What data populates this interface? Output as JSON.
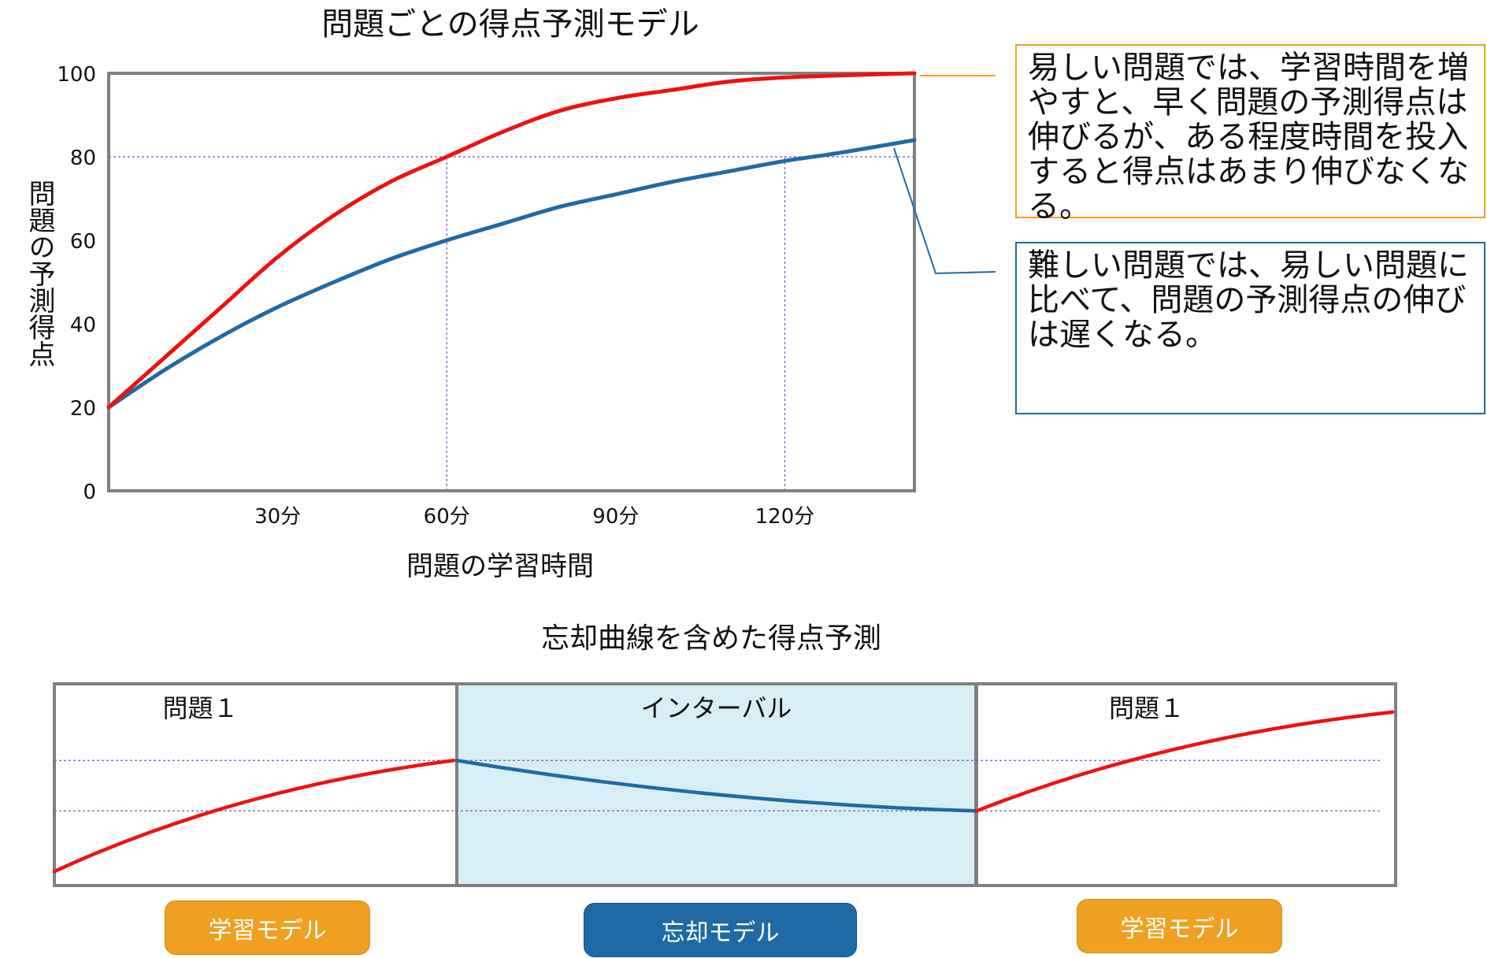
{
  "colors": {
    "easy": "#ee1111",
    "hard": "#1f6aa5",
    "frame": "#808080",
    "guide": "#7a55b8",
    "callout_easy_border": "#f0a020",
    "callout_hard_border": "#1f6aa5",
    "interval_fill": "#d7eef4",
    "pill_learning": "#f0a020",
    "pill_forgetting": "#1f6aa5"
  },
  "chart_data": [
    {
      "type": "line",
      "title": "問題ごとの得点予測モデル",
      "xlabel": "問題の学習時間",
      "ylabel": "問題の予測得点",
      "x_unit": "分",
      "xlim": [
        0,
        143
      ],
      "ylim": [
        0,
        100
      ],
      "x_ticks": [
        30,
        60,
        90,
        120
      ],
      "x_tick_labels": [
        "30分",
        "60分",
        "90分",
        "120分"
      ],
      "y_ticks": [
        0,
        20,
        40,
        60,
        80,
        100
      ],
      "y_tick_labels": [
        "0",
        "20",
        "40",
        "60",
        "80",
        "100"
      ],
      "grid": false,
      "guide_lines": [
        {
          "type": "horizontal",
          "y": 80
        },
        {
          "type": "vertical",
          "x": 60
        },
        {
          "type": "vertical",
          "x": 120
        }
      ],
      "series": [
        {
          "key": "easy",
          "color": "#ee1111",
          "x": [
            0,
            10,
            20,
            30,
            40,
            50,
            60,
            70,
            80,
            90,
            100,
            110,
            120,
            130,
            143
          ],
          "values": [
            20,
            32,
            44,
            56,
            66,
            74,
            80,
            86,
            91,
            94,
            96,
            98,
            99,
            99.5,
            100
          ]
        },
        {
          "key": "hard",
          "color": "#1f6aa5",
          "x": [
            0,
            10,
            20,
            30,
            40,
            50,
            60,
            70,
            80,
            90,
            100,
            110,
            120,
            130,
            143
          ],
          "values": [
            20,
            29,
            37,
            44,
            50,
            55.5,
            60,
            64,
            68,
            71,
            74,
            76.5,
            79,
            81,
            84
          ]
        }
      ],
      "annotations": [
        {
          "key": "easy",
          "text": "易しい問題では、学習時間を増やすと、早く問題の予測得点は伸びるが、ある程度時間を投入すると得点はあまり伸びなくなる。"
        },
        {
          "key": "hard",
          "text": "難しい問題では、易しい問題に比べて、問題の予測得点の伸びは遅くなる。"
        }
      ]
    },
    {
      "type": "line",
      "title": "忘却曲線を含めた得点予測",
      "panels": [
        {
          "label": "問題１",
          "shaded": false,
          "model": "学習モデル",
          "curve": "learning",
          "start": 0.07,
          "end": 0.62
        },
        {
          "label": "インターバル",
          "shaded": true,
          "model": "忘却モデル",
          "curve": "forgetting",
          "start": 0.62,
          "end": 0.37
        },
        {
          "label": "問題１",
          "shaded": false,
          "model": "学習モデル",
          "curve": "learning",
          "start": 0.37,
          "end": 0.86
        }
      ],
      "reference_levels": [
        0.62,
        0.37
      ]
    }
  ]
}
